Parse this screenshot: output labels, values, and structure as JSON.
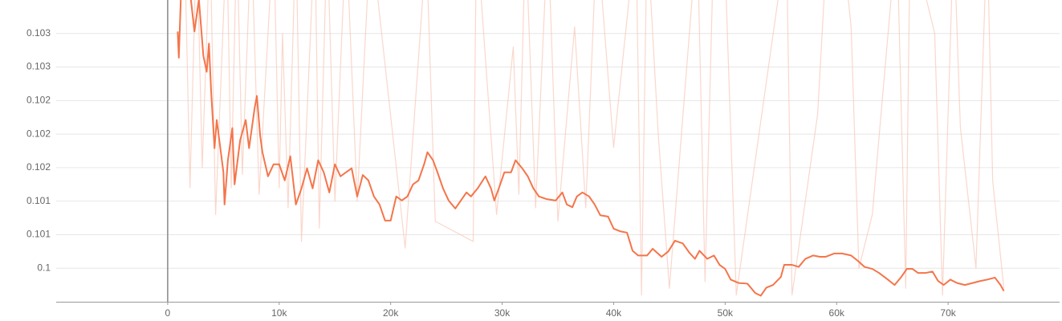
{
  "chart_data": {
    "type": "line",
    "xlim": [
      -10000,
      80000
    ],
    "xticks": [
      0,
      {
        "value": 10000,
        "label": "10k"
      },
      {
        "value": 20000,
        "label": "20k"
      },
      {
        "value": 30000,
        "label": "30k"
      },
      {
        "value": 40000,
        "label": "40k"
      },
      {
        "value": 50000,
        "label": "50k"
      },
      {
        "value": 60000,
        "label": "60k"
      },
      {
        "value": 70000,
        "label": "70k"
      }
    ],
    "ylim": [
      0.0995,
      0.104
    ],
    "yticks": [
      0.1,
      {
        "value": 0.1005,
        "label": "0.101"
      },
      0.101,
      {
        "value": 0.1015,
        "label": "0.102"
      },
      0.102,
      {
        "value": 0.1025,
        "label": "0.102"
      },
      0.103,
      {
        "value": 0.1035,
        "label": "0.103"
      }
    ],
    "grid": true,
    "series": [
      {
        "color": "#f8c6b6",
        "x": [
          1500,
          2000,
          2600,
          3100,
          3800,
          4300,
          5300,
          5700,
          6200,
          6700,
          7500,
          8200,
          9500,
          10000,
          10300,
          10800,
          11500,
          12000,
          13200,
          13600,
          14300,
          15000,
          16000,
          17000,
          18200,
          21300,
          23200,
          24000,
          27400,
          27700,
          29500,
          31000,
          31500,
          32100,
          33000,
          34100,
          35000,
          36500,
          37500,
          38500,
          40000,
          42000,
          42500,
          43000,
          44000,
          45000,
          47500,
          48200,
          49000,
          50000,
          51000,
          55500,
          56000,
          58300,
          59200,
          60500,
          61300,
          62000,
          63200,
          65400,
          66200,
          66600,
          68800,
          69500,
          70500,
          71100,
          72500,
          73500,
          74000,
          75000
        ],
        "values": [
          0.105,
          0.1012,
          0.105,
          0.1015,
          0.1049,
          0.1008,
          0.105,
          0.1012,
          0.105,
          0.1014,
          0.105,
          0.1011,
          0.105,
          0.1012,
          0.1035,
          0.1009,
          0.105,
          0.1004,
          0.105,
          0.1006,
          0.105,
          0.101,
          0.105,
          0.101,
          0.105,
          0.1003,
          0.1048,
          0.1007,
          0.1004,
          0.105,
          0.1008,
          0.1033,
          0.1011,
          0.105,
          0.1009,
          0.105,
          0.1007,
          0.1036,
          0.1009,
          0.105,
          0.1018,
          0.105,
          0.0996,
          0.105,
          0.102,
          0.0997,
          0.105,
          0.0998,
          0.105,
          0.1045,
          0.0996,
          0.1049,
          0.0996,
          0.1023,
          0.105,
          0.1049,
          0.1036,
          0.1,
          0.1008,
          0.105,
          0.0997,
          0.105,
          0.1035,
          0.0996,
          0.105,
          0.1021,
          0.1,
          0.105,
          0.1013,
          0.0997
        ]
      },
      {
        "color": "#f4754a",
        "x": [
          900,
          1000,
          1200,
          2000,
          2400,
          2800,
          3200,
          3500,
          3700,
          3900,
          4200,
          4400,
          5000,
          5100,
          5400,
          5800,
          6000,
          6500,
          7000,
          7300,
          7800,
          8000,
          8300,
          8500,
          9000,
          9500,
          10000,
          10500,
          11000,
          11500,
          12000,
          12500,
          13000,
          13500,
          14000,
          14500,
          15000,
          15500,
          16000,
          16500,
          17000,
          17500,
          18000,
          18500,
          19000,
          19500,
          20000,
          20500,
          21000,
          21500,
          22000,
          22500,
          23000,
          23300,
          23800,
          24200,
          24700,
          25200,
          25800,
          26300,
          26800,
          27200,
          27800,
          28500,
          29000,
          29300,
          29700,
          30200,
          30800,
          31200,
          31800,
          32300,
          32800,
          33300,
          34000,
          34800,
          35400,
          35800,
          36300,
          36700,
          37200,
          37800,
          38300,
          38800,
          39500,
          40000,
          40600,
          41200,
          41700,
          42200,
          43000,
          43500,
          44300,
          44900,
          45500,
          46200,
          46800,
          47300,
          47700,
          48400,
          49000,
          49500,
          50000,
          50500,
          51200,
          52000,
          52700,
          53200,
          53700,
          54300,
          55000,
          55300,
          56000,
          56600,
          57200,
          57900,
          58500,
          59000,
          59800,
          60500,
          61300,
          61900,
          62500,
          63200,
          63800,
          64600,
          65200,
          65800,
          66300,
          66800,
          67300,
          68000,
          68600,
          69100,
          69600,
          70200,
          70800,
          71500,
          72200,
          72900,
          73500,
          74200,
          74700,
          75000
        ],
        "values": [
          0.10353,
          0.10314,
          0.10413,
          0.10413,
          0.10353,
          0.10401,
          0.10317,
          0.10293,
          0.10335,
          0.10263,
          0.10179,
          0.10221,
          0.10143,
          0.10095,
          0.10161,
          0.10209,
          0.10125,
          0.10191,
          0.10221,
          0.10179,
          0.10239,
          0.10257,
          0.10197,
          0.10173,
          0.10137,
          0.10155,
          0.10155,
          0.10131,
          0.10167,
          0.10095,
          0.10119,
          0.10149,
          0.10119,
          0.10161,
          0.10143,
          0.10113,
          0.10155,
          0.10137,
          0.10143,
          0.10149,
          0.10107,
          0.10139,
          0.10131,
          0.10107,
          0.10095,
          0.10071,
          0.10071,
          0.10107,
          0.10101,
          0.10107,
          0.10125,
          0.10131,
          0.10155,
          0.10173,
          0.10161,
          0.10143,
          0.10119,
          0.10101,
          0.10089,
          0.10101,
          0.10113,
          0.10107,
          0.10119,
          0.10137,
          0.10119,
          0.10101,
          0.10119,
          0.10143,
          0.10143,
          0.10161,
          0.10149,
          0.10137,
          0.10119,
          0.10107,
          0.10103,
          0.10101,
          0.10113,
          0.10095,
          0.10091,
          0.10107,
          0.10113,
          0.10107,
          0.10095,
          0.10079,
          0.10077,
          0.10059,
          0.10055,
          0.10053,
          0.10026,
          0.10019,
          0.10019,
          0.10029,
          0.10017,
          0.10025,
          0.10041,
          0.10037,
          0.10023,
          0.10014,
          0.10026,
          0.10014,
          0.10019,
          0.10005,
          0.09999,
          0.09983,
          0.09978,
          0.09977,
          0.09963,
          0.09959,
          0.09971,
          0.09975,
          0.09987,
          0.10005,
          0.10005,
          0.10002,
          0.10014,
          0.10019,
          0.10017,
          0.10017,
          0.10022,
          0.10022,
          0.10019,
          0.10011,
          0.10002,
          0.09999,
          0.09993,
          0.09983,
          0.09975,
          0.09987,
          0.09999,
          0.09999,
          0.09993,
          0.09993,
          0.09995,
          0.09981,
          0.09975,
          0.09983,
          0.09978,
          0.09975,
          0.09978,
          0.09981,
          0.09983,
          0.09986,
          0.09975,
          0.09966
        ]
      }
    ]
  }
}
